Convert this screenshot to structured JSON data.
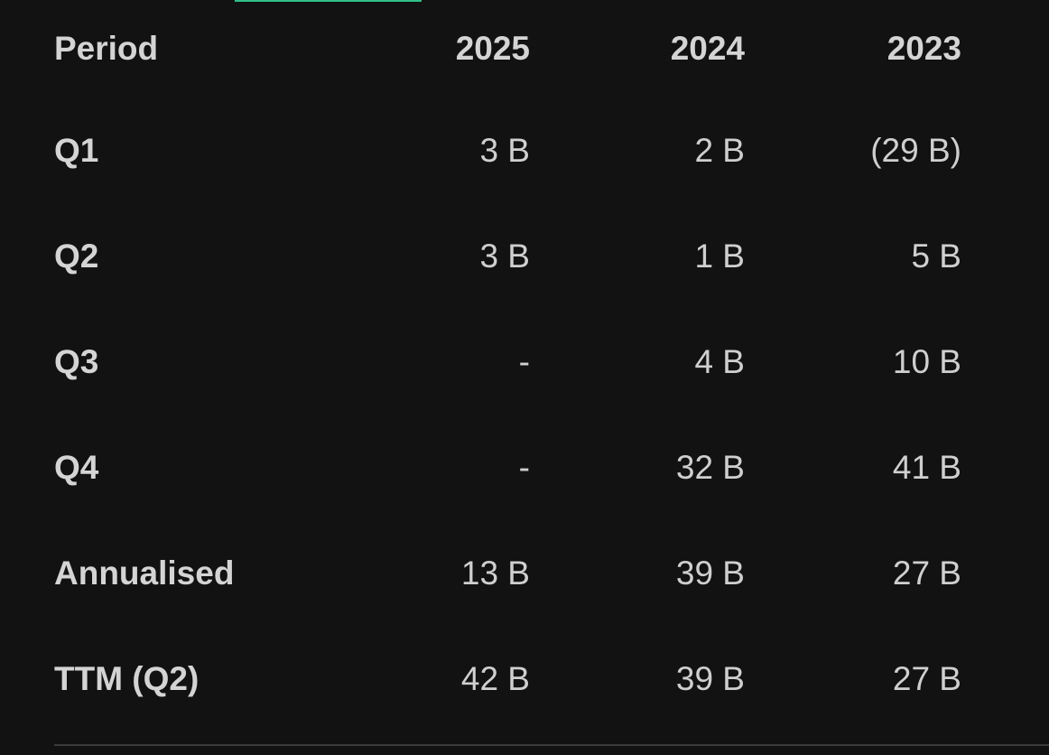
{
  "table": {
    "headers": [
      "Period",
      "2025",
      "2024",
      "2023"
    ],
    "rows": [
      {
        "label": "Q1",
        "values": [
          "3 B",
          "2 B",
          "(29 B)"
        ]
      },
      {
        "label": "Q2",
        "values": [
          "3 B",
          "1 B",
          "5 B"
        ]
      },
      {
        "label": "Q3",
        "values": [
          "-",
          "4 B",
          "10 B"
        ]
      },
      {
        "label": "Q4",
        "values": [
          "-",
          "32 B",
          "41 B"
        ]
      },
      {
        "label": "Annualised",
        "values": [
          "13 B",
          "39 B",
          "27 B"
        ]
      },
      {
        "label": "TTM (Q2)",
        "values": [
          "42 B",
          "39 B",
          "27 B"
        ]
      }
    ]
  },
  "colors": {
    "background": "#121212",
    "text": "#d2d2d2",
    "accent": "#2fbf8a",
    "divider": "#3a3a3a"
  }
}
